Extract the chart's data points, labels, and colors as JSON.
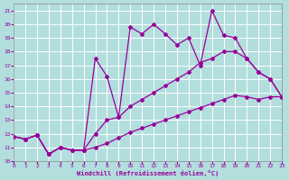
{
  "xlabel": "Windchill (Refroidissement éolien,°C)",
  "background_color": "#b2dede",
  "grid_color": "#c8ecec",
  "line_color": "#990099",
  "xlim": [
    0,
    23
  ],
  "ylim": [
    10,
    21.5
  ],
  "xticks": [
    0,
    1,
    2,
    3,
    4,
    5,
    6,
    7,
    8,
    9,
    10,
    11,
    12,
    13,
    14,
    15,
    16,
    17,
    18,
    19,
    20,
    21,
    22,
    23
  ],
  "yticks": [
    10,
    11,
    12,
    13,
    14,
    15,
    16,
    17,
    18,
    19,
    20,
    21
  ],
  "line_top_x": [
    0,
    1,
    2,
    3,
    4,
    5,
    6,
    7,
    8,
    9,
    10,
    11,
    12,
    13,
    14,
    15,
    16,
    17,
    18,
    19,
    20,
    21,
    22,
    23
  ],
  "line_top_y": [
    11.8,
    11.6,
    11.9,
    10.5,
    11.0,
    10.8,
    10.8,
    17.5,
    16.2,
    13.2,
    19.8,
    19.3,
    20.0,
    19.3,
    18.5,
    19.0,
    17.0,
    21.0,
    19.2,
    19.0,
    17.5,
    16.5,
    16.0,
    14.7
  ],
  "line_mid_x": [
    0,
    1,
    2,
    3,
    4,
    5,
    6,
    7,
    8,
    9,
    10,
    11,
    12,
    13,
    14,
    15,
    16,
    17,
    18,
    19,
    20,
    21,
    22,
    23
  ],
  "line_mid_y": [
    11.8,
    11.6,
    11.9,
    10.5,
    11.0,
    10.8,
    10.8,
    12.0,
    13.0,
    13.2,
    14.0,
    14.5,
    15.0,
    15.5,
    16.0,
    16.5,
    17.2,
    17.5,
    18.0,
    18.0,
    17.5,
    16.5,
    16.0,
    14.7
  ],
  "line_bot_x": [
    0,
    1,
    2,
    3,
    4,
    5,
    6,
    7,
    8,
    9,
    10,
    11,
    12,
    13,
    14,
    15,
    16,
    17,
    18,
    19,
    20,
    21,
    22,
    23
  ],
  "line_bot_y": [
    11.8,
    11.6,
    11.9,
    10.5,
    11.0,
    10.8,
    10.8,
    11.0,
    11.3,
    11.7,
    12.1,
    12.4,
    12.7,
    13.0,
    13.3,
    13.6,
    13.9,
    14.2,
    14.5,
    14.8,
    14.7,
    14.5,
    14.7,
    14.7
  ],
  "marker": "D",
  "markersize": 2.0,
  "linewidth": 0.9
}
